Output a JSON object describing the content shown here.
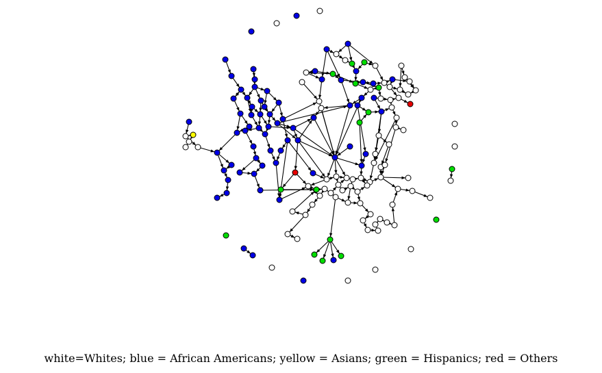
{
  "caption": "white=Whites; blue = African Americans; yellow = Asians; green = Hispanics; red = Others",
  "colors": {
    "white": "#ffffff",
    "blue": "#0000e6",
    "green": "#00dd00",
    "yellow": "#ffff00",
    "red": "#e60000",
    "edge": "#000000"
  },
  "legend": [
    {
      "group": "Whites",
      "color": "white"
    },
    {
      "group": "African Americans",
      "color": "blue"
    },
    {
      "group": "Asians",
      "color": "yellow"
    },
    {
      "group": "Hispanics",
      "color": "green"
    },
    {
      "group": "Others",
      "color": "red"
    }
  ]
}
